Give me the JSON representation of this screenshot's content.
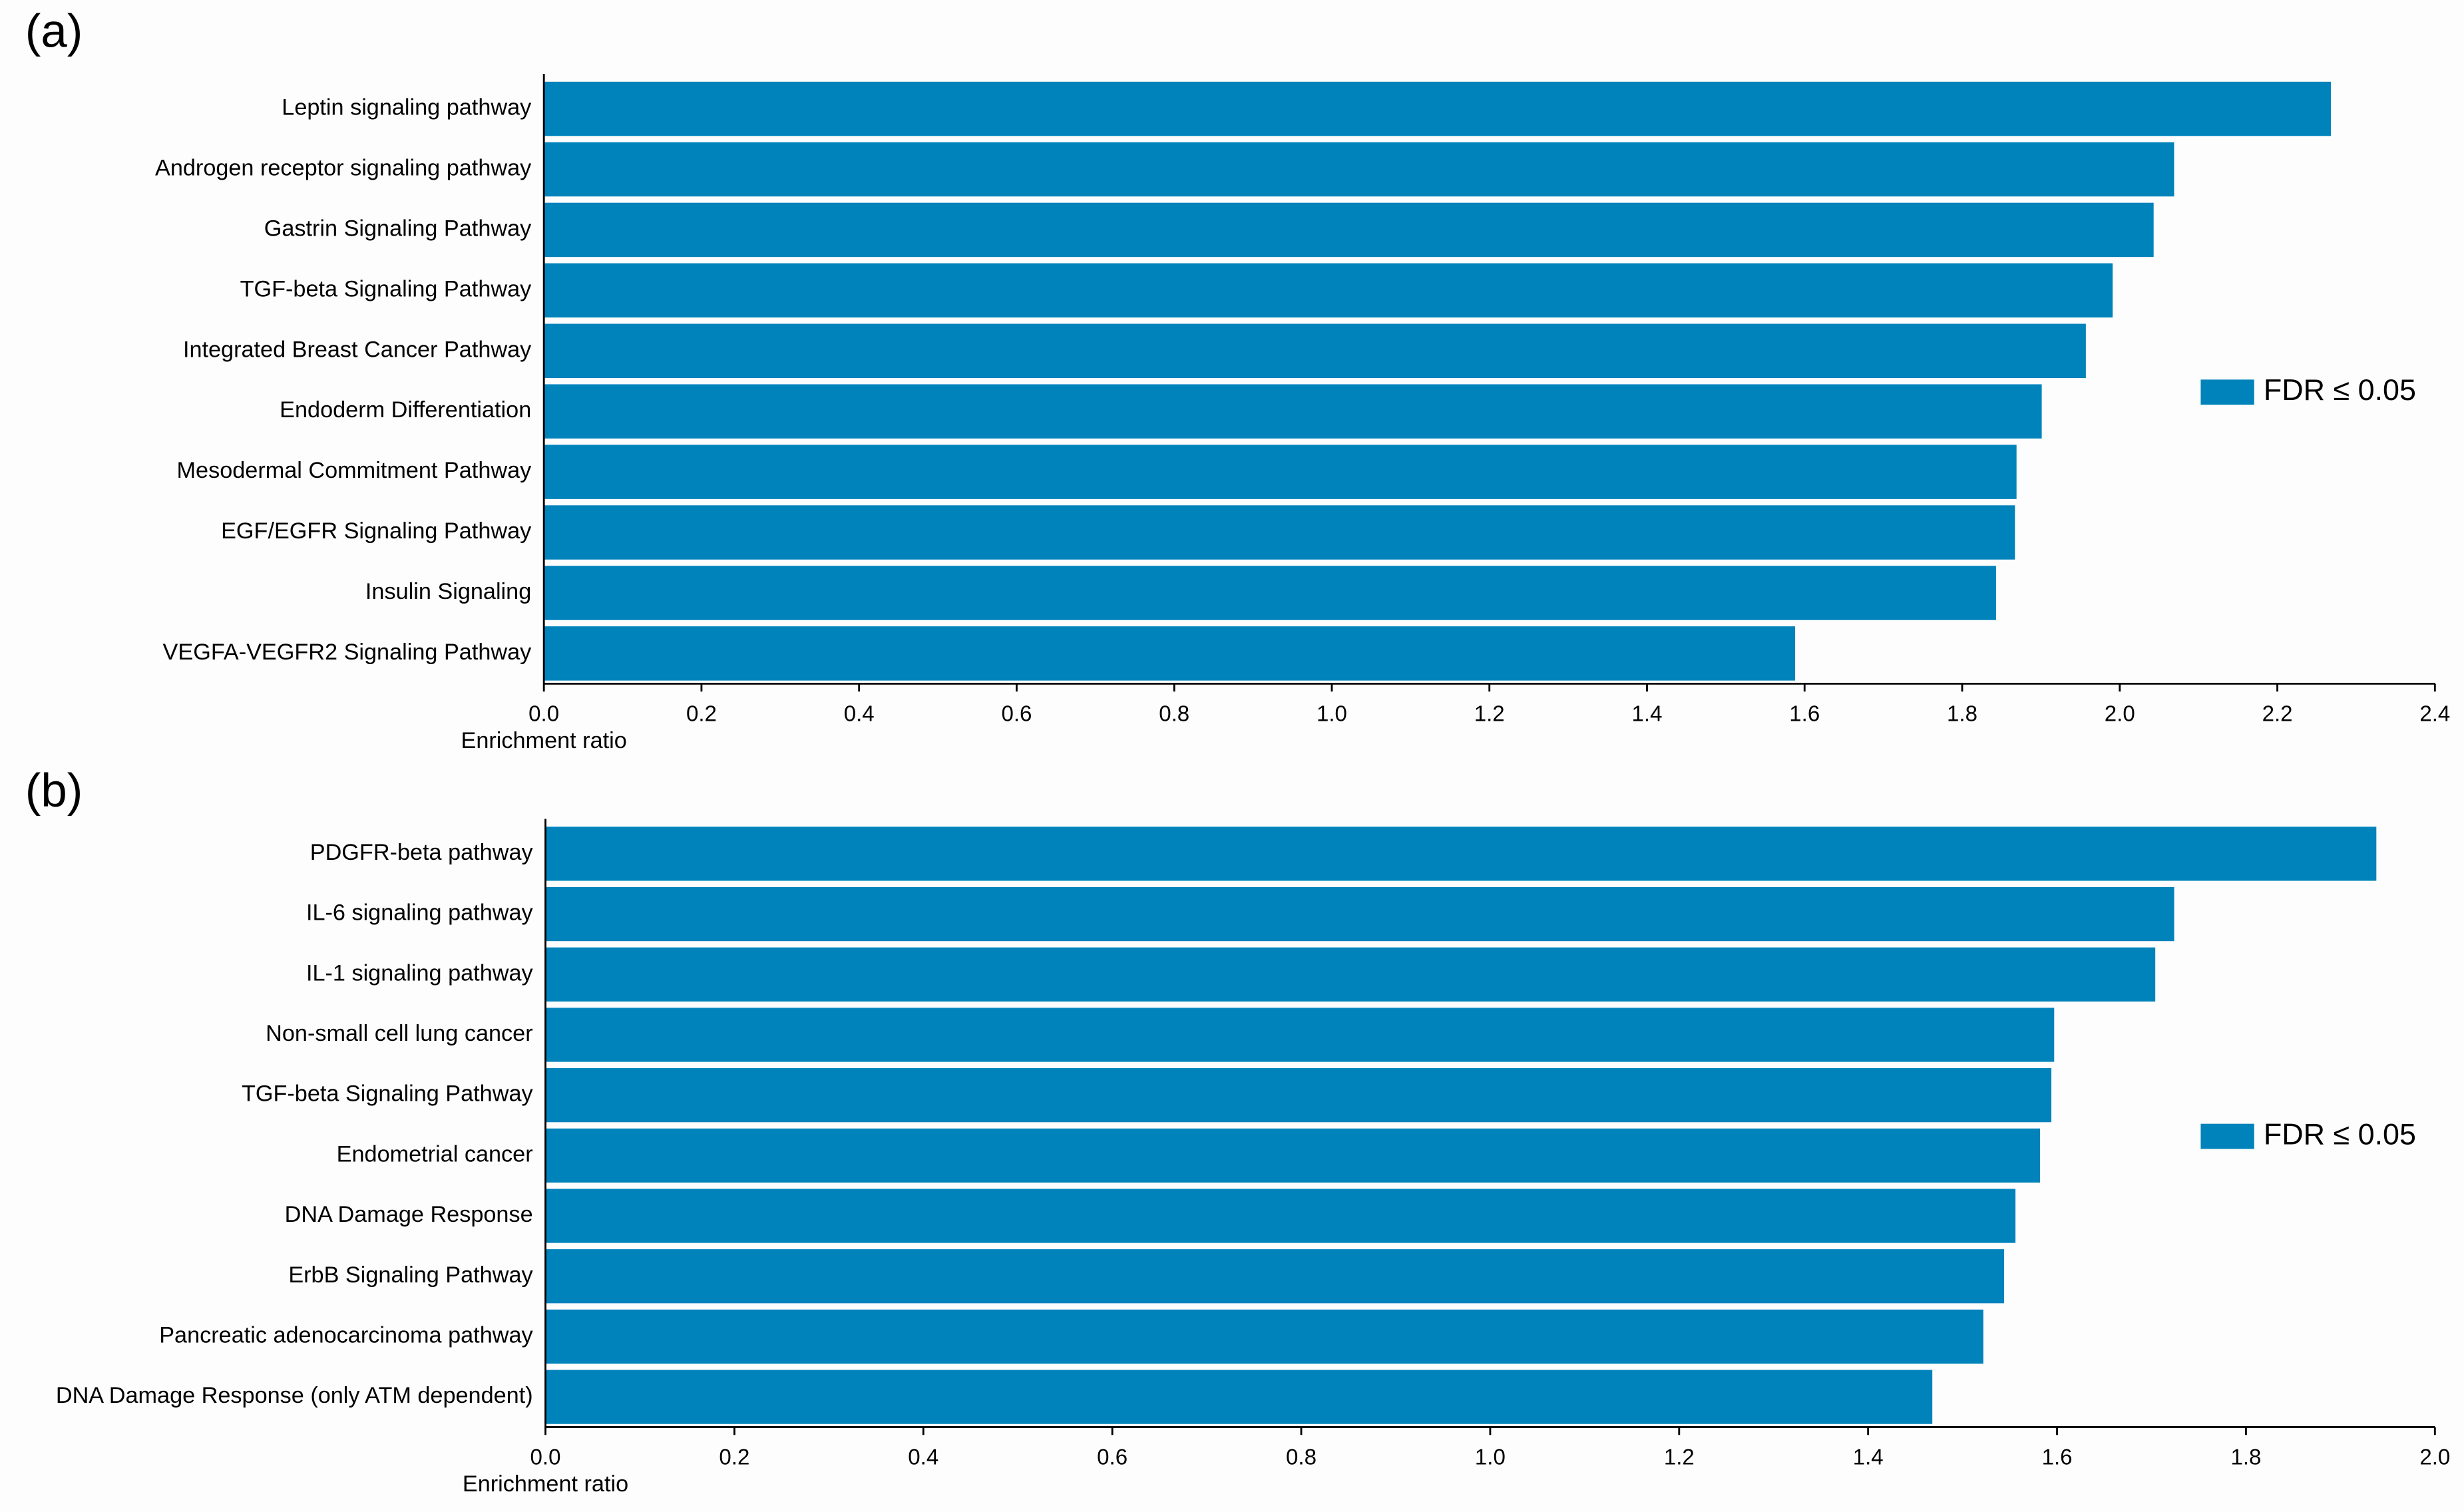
{
  "chart_data": [
    {
      "type": "barh",
      "label": "(a)",
      "xlabel": "Enrichment ratio",
      "categories": [
        "Leptin signaling pathway",
        "Androgen receptor signaling pathway",
        "Gastrin Signaling Pathway",
        "TGF-beta Signaling Pathway",
        "Integrated Breast Cancer Pathway",
        "Endoderm Differentiation",
        "Mesodermal Commitment Pathway",
        "EGF/EGFR Signaling Pathway",
        "Insulin Signaling",
        "VEGFA-VEGFR2 Signaling Pathway"
      ],
      "series": [
        {
          "name": "FDR ≤ 0.05",
          "color": "#0083bb",
          "values": [
            2.268,
            2.069,
            2.043,
            1.991,
            1.957,
            1.901,
            1.869,
            1.867,
            1.843,
            1.588
          ]
        }
      ],
      "xlim": [
        0,
        2.4
      ],
      "xticks": [
        {
          "value": 0,
          "label": "0.0"
        },
        0.2,
        0.4,
        0.6,
        0.8,
        {
          "value": 1,
          "label": "1.0"
        },
        1.2,
        1.4,
        1.6,
        1.8,
        {
          "value": 2,
          "label": "2.0"
        },
        2.2,
        2.4
      ],
      "legend": "right"
    },
    {
      "type": "barh",
      "label": "(b)",
      "xlabel": "Enrichment ratio",
      "categories": [
        "PDGFR-beta pathway",
        "IL-6 signaling pathway",
        "IL-1 signaling pathway",
        "Non-small cell lung cancer",
        "TGF-beta Signaling Pathway",
        "Endometrial cancer",
        "DNA Damage Response",
        "ErbB Signaling Pathway",
        "Pancreatic adenocarcinoma pathway",
        "DNA Damage Response (only ATM dependent)"
      ],
      "series": [
        {
          "name": "FDR ≤ 0.05",
          "color": "#0083bb",
          "values": [
            1.938,
            1.724,
            1.704,
            1.597,
            1.594,
            1.582,
            1.556,
            1.544,
            1.522,
            1.468
          ]
        }
      ],
      "xlim": [
        0,
        2.0
      ],
      "xticks": [
        {
          "value": 0,
          "label": "0.0"
        },
        0.2,
        0.4,
        0.6,
        0.8,
        {
          "value": 1,
          "label": "1.0"
        },
        1.2,
        1.4,
        1.6,
        1.8,
        {
          "value": 2,
          "label": "2.0"
        }
      ],
      "legend": "right"
    }
  ]
}
